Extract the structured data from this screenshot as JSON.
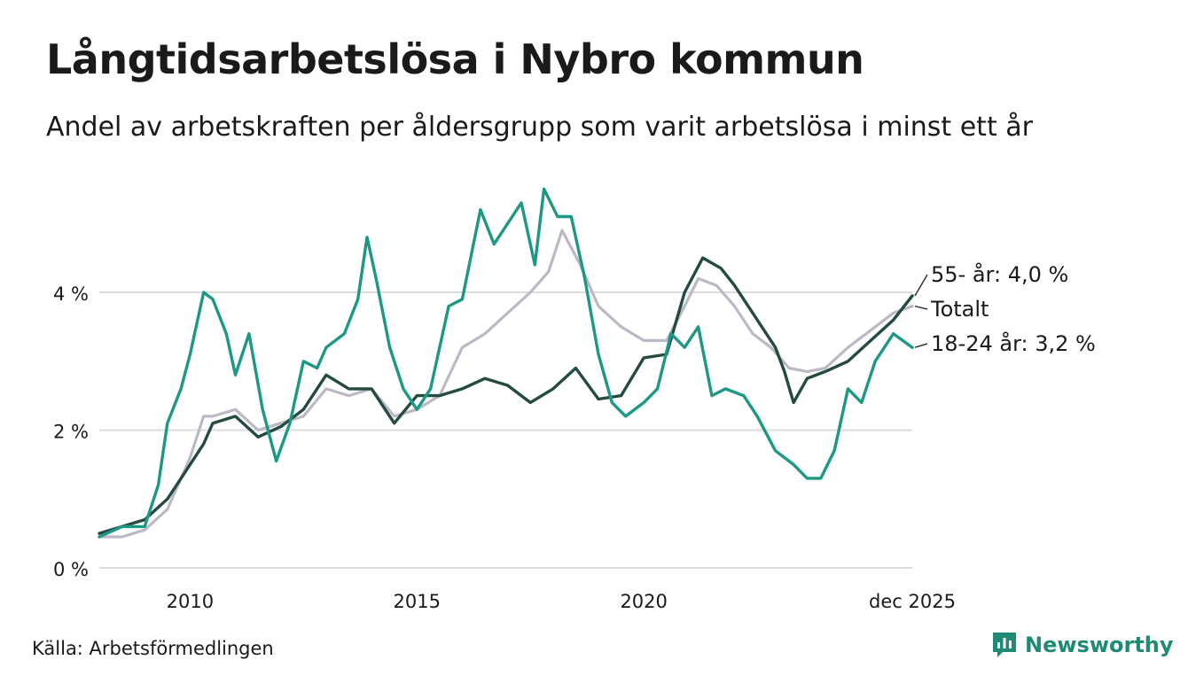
{
  "title": "Långtidsarbetslösa i Nybro kommun",
  "subtitle": "Andel av arbetskraften per åldersgrupp som varit arbetslösa i minst ett år",
  "source": "Källa: Arbetsförmedlingen",
  "brand": {
    "name": "Newsworthy",
    "color": "#1f8b74",
    "icon": "bar-chart-speech-bubble-icon"
  },
  "chart_data": {
    "type": "line",
    "title": "Långtidsarbetslösa i Nybro kommun",
    "xlabel": "",
    "ylabel": "",
    "x_range": [
      2008.0,
      2025.917
    ],
    "ylim": [
      0,
      5.6
    ],
    "y_ticks": [
      0,
      2,
      4
    ],
    "y_tick_labels": [
      "0 %",
      "2 %",
      "4 %"
    ],
    "x_ticks": [
      2010,
      2015,
      2020,
      2025.917
    ],
    "x_tick_labels": [
      "2010",
      "2015",
      "2020",
      "dec 2025"
    ],
    "grid": true,
    "series": [
      {
        "name": "Totalt",
        "color": "#bdb8c6",
        "end_label": "Totalt",
        "points": [
          [
            2008.0,
            0.45
          ],
          [
            2008.5,
            0.45
          ],
          [
            2009.0,
            0.55
          ],
          [
            2009.5,
            0.85
          ],
          [
            2010.0,
            1.6
          ],
          [
            2010.3,
            2.2
          ],
          [
            2010.5,
            2.2
          ],
          [
            2011.0,
            2.3
          ],
          [
            2011.5,
            2.0
          ],
          [
            2012.0,
            2.1
          ],
          [
            2012.5,
            2.2
          ],
          [
            2013.0,
            2.6
          ],
          [
            2013.5,
            2.5
          ],
          [
            2014.0,
            2.6
          ],
          [
            2014.5,
            2.2
          ],
          [
            2015.0,
            2.3
          ],
          [
            2015.5,
            2.5
          ],
          [
            2016.0,
            3.2
          ],
          [
            2016.5,
            3.4
          ],
          [
            2017.0,
            3.7
          ],
          [
            2017.5,
            4.0
          ],
          [
            2017.9,
            4.3
          ],
          [
            2018.2,
            4.9
          ],
          [
            2018.6,
            4.4
          ],
          [
            2019.0,
            3.8
          ],
          [
            2019.5,
            3.5
          ],
          [
            2020.0,
            3.3
          ],
          [
            2020.5,
            3.3
          ],
          [
            2020.9,
            3.8
          ],
          [
            2021.2,
            4.2
          ],
          [
            2021.6,
            4.1
          ],
          [
            2022.0,
            3.8
          ],
          [
            2022.4,
            3.4
          ],
          [
            2022.8,
            3.2
          ],
          [
            2023.2,
            2.9
          ],
          [
            2023.6,
            2.85
          ],
          [
            2024.0,
            2.9
          ],
          [
            2024.5,
            3.2
          ],
          [
            2025.0,
            3.45
          ],
          [
            2025.5,
            3.7
          ],
          [
            2025.917,
            3.8
          ]
        ]
      },
      {
        "name": "55- år",
        "color": "#234b42",
        "end_label": "55- år: 4,0 %",
        "points": [
          [
            2008.0,
            0.5
          ],
          [
            2008.5,
            0.6
          ],
          [
            2009.0,
            0.7
          ],
          [
            2009.5,
            1.0
          ],
          [
            2010.0,
            1.5
          ],
          [
            2010.3,
            1.8
          ],
          [
            2010.5,
            2.1
          ],
          [
            2011.0,
            2.2
          ],
          [
            2011.5,
            1.9
          ],
          [
            2012.0,
            2.05
          ],
          [
            2012.5,
            2.3
          ],
          [
            2013.0,
            2.8
          ],
          [
            2013.5,
            2.6
          ],
          [
            2014.0,
            2.6
          ],
          [
            2014.5,
            2.1
          ],
          [
            2015.0,
            2.5
          ],
          [
            2015.5,
            2.5
          ],
          [
            2016.0,
            2.6
          ],
          [
            2016.5,
            2.75
          ],
          [
            2017.0,
            2.65
          ],
          [
            2017.5,
            2.4
          ],
          [
            2018.0,
            2.6
          ],
          [
            2018.5,
            2.9
          ],
          [
            2019.0,
            2.45
          ],
          [
            2019.5,
            2.5
          ],
          [
            2020.0,
            3.05
          ],
          [
            2020.5,
            3.1
          ],
          [
            2020.9,
            4.0
          ],
          [
            2021.3,
            4.5
          ],
          [
            2021.7,
            4.35
          ],
          [
            2022.0,
            4.1
          ],
          [
            2022.5,
            3.6
          ],
          [
            2022.9,
            3.2
          ],
          [
            2023.1,
            2.85
          ],
          [
            2023.3,
            2.4
          ],
          [
            2023.6,
            2.75
          ],
          [
            2024.0,
            2.85
          ],
          [
            2024.5,
            3.0
          ],
          [
            2025.0,
            3.3
          ],
          [
            2025.5,
            3.6
          ],
          [
            2025.917,
            3.95
          ]
        ]
      },
      {
        "name": "18-24 år",
        "color": "#1d9885",
        "end_label": "18-24 år: 3,2 %",
        "points": [
          [
            2008.0,
            0.45
          ],
          [
            2008.5,
            0.6
          ],
          [
            2009.0,
            0.6
          ],
          [
            2009.3,
            1.2
          ],
          [
            2009.5,
            2.1
          ],
          [
            2009.8,
            2.6
          ],
          [
            2010.0,
            3.1
          ],
          [
            2010.3,
            4.0
          ],
          [
            2010.5,
            3.9
          ],
          [
            2010.8,
            3.4
          ],
          [
            2011.0,
            2.8
          ],
          [
            2011.3,
            3.4
          ],
          [
            2011.6,
            2.3
          ],
          [
            2011.9,
            1.55
          ],
          [
            2012.2,
            2.1
          ],
          [
            2012.5,
            3.0
          ],
          [
            2012.8,
            2.9
          ],
          [
            2013.0,
            3.2
          ],
          [
            2013.4,
            3.4
          ],
          [
            2013.7,
            3.9
          ],
          [
            2013.9,
            4.8
          ],
          [
            2014.1,
            4.2
          ],
          [
            2014.4,
            3.2
          ],
          [
            2014.7,
            2.6
          ],
          [
            2015.0,
            2.3
          ],
          [
            2015.3,
            2.6
          ],
          [
            2015.7,
            3.8
          ],
          [
            2016.0,
            3.9
          ],
          [
            2016.4,
            5.2
          ],
          [
            2016.7,
            4.7
          ],
          [
            2017.0,
            5.0
          ],
          [
            2017.3,
            5.3
          ],
          [
            2017.6,
            4.4
          ],
          [
            2017.8,
            5.5
          ],
          [
            2018.1,
            5.1
          ],
          [
            2018.4,
            5.1
          ],
          [
            2018.7,
            4.2
          ],
          [
            2019.0,
            3.1
          ],
          [
            2019.3,
            2.4
          ],
          [
            2019.6,
            2.2
          ],
          [
            2020.0,
            2.4
          ],
          [
            2020.3,
            2.6
          ],
          [
            2020.6,
            3.4
          ],
          [
            2020.9,
            3.2
          ],
          [
            2021.2,
            3.5
          ],
          [
            2021.5,
            2.5
          ],
          [
            2021.8,
            2.6
          ],
          [
            2022.2,
            2.5
          ],
          [
            2022.5,
            2.2
          ],
          [
            2022.9,
            1.7
          ],
          [
            2023.3,
            1.5
          ],
          [
            2023.6,
            1.3
          ],
          [
            2023.9,
            1.3
          ],
          [
            2024.2,
            1.7
          ],
          [
            2024.5,
            2.6
          ],
          [
            2024.8,
            2.4
          ],
          [
            2025.1,
            3.0
          ],
          [
            2025.5,
            3.4
          ],
          [
            2025.917,
            3.2
          ]
        ]
      }
    ]
  }
}
